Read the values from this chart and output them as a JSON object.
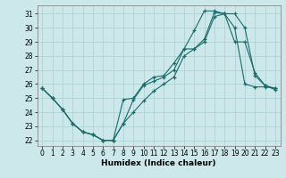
{
  "xlabel": "Humidex (Indice chaleur)",
  "bg_color": "#cce8ea",
  "grid_color": "#aacfd4",
  "line_color": "#1a6b6b",
  "xlim": [
    -0.5,
    23.5
  ],
  "ylim": [
    21.6,
    31.6
  ],
  "xticks": [
    0,
    1,
    2,
    3,
    4,
    5,
    6,
    7,
    8,
    9,
    10,
    11,
    12,
    13,
    14,
    15,
    16,
    17,
    18,
    19,
    20,
    21,
    22,
    23
  ],
  "yticks": [
    22,
    23,
    24,
    25,
    26,
    27,
    28,
    29,
    30,
    31
  ],
  "line1_x": [
    0,
    1,
    2,
    3,
    4,
    5,
    6,
    7,
    8,
    9,
    10,
    11,
    12,
    13,
    14,
    15,
    16,
    17,
    18,
    19,
    20,
    21,
    22,
    23
  ],
  "line1_y": [
    25.7,
    25.0,
    24.2,
    23.2,
    22.6,
    22.4,
    22.0,
    22.0,
    23.2,
    24.9,
    25.9,
    26.2,
    26.5,
    27.0,
    28.5,
    29.8,
    31.2,
    31.2,
    31.0,
    29.0,
    29.0,
    26.8,
    25.9,
    25.7
  ],
  "line2_x": [
    0,
    1,
    2,
    3,
    4,
    5,
    6,
    7,
    8,
    9,
    10,
    11,
    12,
    13,
    14,
    15,
    16,
    17,
    18,
    19,
    20,
    21,
    22,
    23
  ],
  "line2_y": [
    25.7,
    25.0,
    24.2,
    23.2,
    22.6,
    22.4,
    22.0,
    22.0,
    24.9,
    25.0,
    26.0,
    26.5,
    26.6,
    27.5,
    28.5,
    28.5,
    29.2,
    31.1,
    31.0,
    30.0,
    26.0,
    25.8,
    25.8,
    25.7
  ],
  "line3_x": [
    0,
    1,
    2,
    3,
    4,
    5,
    6,
    7,
    8,
    9,
    10,
    11,
    12,
    13,
    14,
    15,
    16,
    17,
    18,
    19,
    20,
    21,
    22,
    23
  ],
  "line3_y": [
    25.7,
    25.0,
    24.2,
    23.2,
    22.6,
    22.4,
    22.0,
    22.0,
    23.2,
    24.0,
    24.8,
    25.5,
    26.0,
    26.5,
    28.0,
    28.5,
    29.0,
    30.8,
    31.0,
    31.0,
    30.0,
    26.6,
    25.9,
    25.6
  ]
}
